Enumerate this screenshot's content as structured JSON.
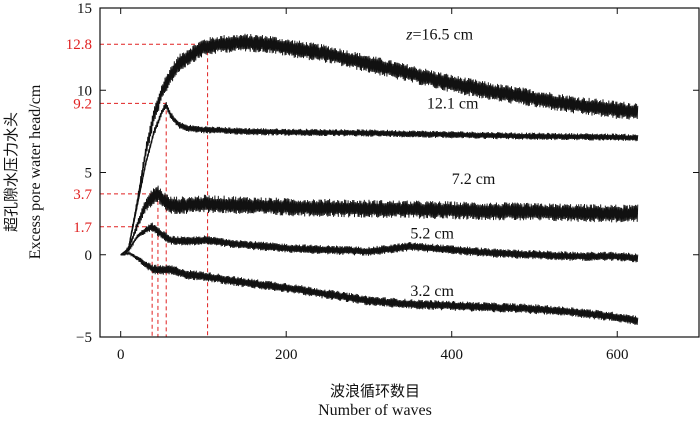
{
  "chart_data": {
    "type": "line",
    "xlabel_cn": "波浪循环数目",
    "xlabel": "Number of waves",
    "ylabel_cn": "超孔隙水压力水头",
    "ylabel": "Excess pore water head/cm",
    "xlim": [
      -25,
      700
    ],
    "ylim": [
      -5,
      15
    ],
    "x_ticks": [
      0,
      200,
      400,
      600
    ],
    "y_ticks": [
      -5,
      0,
      5,
      10,
      15
    ],
    "x_tick_labels": [
      "0",
      "200",
      "400",
      "600"
    ],
    "y_tick_labels": [
      "−5",
      "0",
      "5",
      "10",
      "15"
    ],
    "highlight_levels": [
      {
        "label": "12.8",
        "value": 12.8,
        "x": 105
      },
      {
        "label": "9.2",
        "value": 9.2,
        "x": 55
      },
      {
        "label": "3.7",
        "value": 3.7,
        "x": 45
      },
      {
        "label": "1.7",
        "value": 1.7,
        "x": 38
      }
    ],
    "highlight_color": "#e02020",
    "series_color": "#111111",
    "series": [
      {
        "name": "z=16.5 cm",
        "label_prefix": "z",
        "label_rest": "=16.5 cm",
        "noise": 0.55,
        "label_at": [
          345,
          13.1
        ],
        "x": [
          0,
          5,
          10,
          20,
          30,
          40,
          50,
          60,
          70,
          80,
          90,
          100,
          120,
          150,
          180,
          200,
          250,
          300,
          350,
          400,
          450,
          500,
          550,
          600,
          625
        ],
        "y": [
          0,
          0,
          0.5,
          3.2,
          6.2,
          8.4,
          9.9,
          10.9,
          11.6,
          12.0,
          12.3,
          12.6,
          12.8,
          12.9,
          12.8,
          12.6,
          12.2,
          11.6,
          11.0,
          10.4,
          9.9,
          9.5,
          9.1,
          8.8,
          8.7
        ]
      },
      {
        "name": "12.1 cm",
        "label_prefix": "",
        "label_rest": "12.1 cm",
        "noise": 0.22,
        "label_at": [
          370,
          8.9
        ],
        "x": [
          0,
          5,
          10,
          20,
          30,
          40,
          50,
          55,
          60,
          70,
          80,
          100,
          150,
          200,
          300,
          400,
          500,
          600,
          625
        ],
        "y": [
          0,
          0,
          0.5,
          3.0,
          5.5,
          7.4,
          8.7,
          9.1,
          8.5,
          7.9,
          7.7,
          7.6,
          7.5,
          7.45,
          7.4,
          7.3,
          7.2,
          7.15,
          7.1
        ]
      },
      {
        "name": "7.2 cm",
        "label_prefix": "",
        "label_rest": "7.2 cm",
        "noise": 0.55,
        "label_at": [
          400,
          4.3
        ],
        "x": [
          0,
          10,
          20,
          30,
          40,
          45,
          50,
          60,
          80,
          100,
          150,
          200,
          300,
          400,
          500,
          600,
          625
        ],
        "y": [
          0,
          0.4,
          1.8,
          3.0,
          3.6,
          3.7,
          3.4,
          3.0,
          3.0,
          3.1,
          3.0,
          2.9,
          2.8,
          2.7,
          2.6,
          2.5,
          2.5
        ]
      },
      {
        "name": "5.2 cm",
        "label_prefix": "",
        "label_rest": "5.2 cm",
        "noise": 0.28,
        "label_at": [
          350,
          1.0
        ],
        "x": [
          0,
          10,
          20,
          30,
          38,
          45,
          60,
          80,
          100,
          150,
          200,
          250,
          300,
          350,
          400,
          450,
          500,
          550,
          600,
          625
        ],
        "y": [
          0,
          0.3,
          1.1,
          1.5,
          1.7,
          1.4,
          0.9,
          0.8,
          0.9,
          0.6,
          0.4,
          0.3,
          0.2,
          0.5,
          0.3,
          0.1,
          0.0,
          -0.1,
          -0.1,
          -0.2
        ]
      },
      {
        "name": "3.2 cm",
        "label_prefix": "",
        "label_rest": "3.2 cm",
        "noise": 0.3,
        "label_at": [
          350,
          -2.5
        ],
        "x": [
          0,
          10,
          20,
          30,
          40,
          50,
          60,
          80,
          100,
          150,
          200,
          250,
          300,
          350,
          400,
          450,
          500,
          550,
          600,
          625
        ],
        "y": [
          0,
          0.1,
          -0.2,
          -0.6,
          -0.9,
          -0.95,
          -0.9,
          -1.2,
          -1.3,
          -1.7,
          -2.0,
          -2.4,
          -2.8,
          -3.0,
          -3.1,
          -3.2,
          -3.3,
          -3.5,
          -3.8,
          -4.0
        ]
      }
    ]
  }
}
